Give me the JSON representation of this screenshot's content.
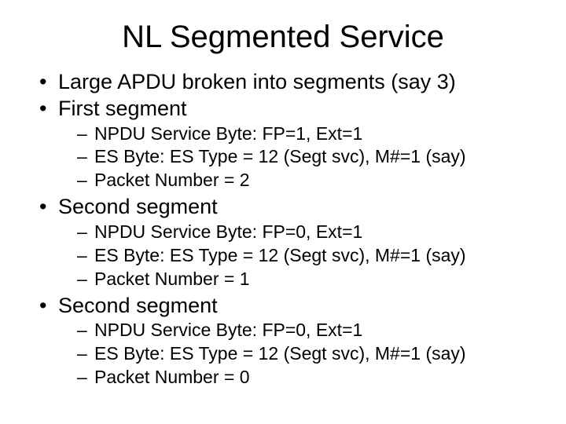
{
  "slide": {
    "title": "NL Segmented Service",
    "background_color": "#ffffff",
    "text_color": "#000000",
    "title_fontsize": 40,
    "l1_fontsize": 27,
    "l2_fontsize": 23,
    "bullets": [
      {
        "level": 1,
        "text": "Large APDU broken into segments (say 3)"
      },
      {
        "level": 1,
        "text": "First segment"
      },
      {
        "level": 2,
        "text": "NPDU Service Byte: FP=1, Ext=1"
      },
      {
        "level": 2,
        "text": "ES Byte: ES Type = 12 (Segt svc), M#=1 (say)"
      },
      {
        "level": 2,
        "text": "Packet Number = 2"
      },
      {
        "level": 1,
        "text": "Second segment"
      },
      {
        "level": 2,
        "text": "NPDU Service Byte: FP=0, Ext=1"
      },
      {
        "level": 2,
        "text": "ES Byte: ES Type = 12 (Segt svc), M#=1 (say)"
      },
      {
        "level": 2,
        "text": "Packet Number = 1"
      },
      {
        "level": 1,
        "text": "Second segment"
      },
      {
        "level": 2,
        "text": "NPDU Service Byte: FP=0, Ext=1"
      },
      {
        "level": 2,
        "text": "ES Byte: ES Type = 12 (Segt svc), M#=1 (say)"
      },
      {
        "level": 2,
        "text": "Packet Number = 0"
      }
    ]
  }
}
